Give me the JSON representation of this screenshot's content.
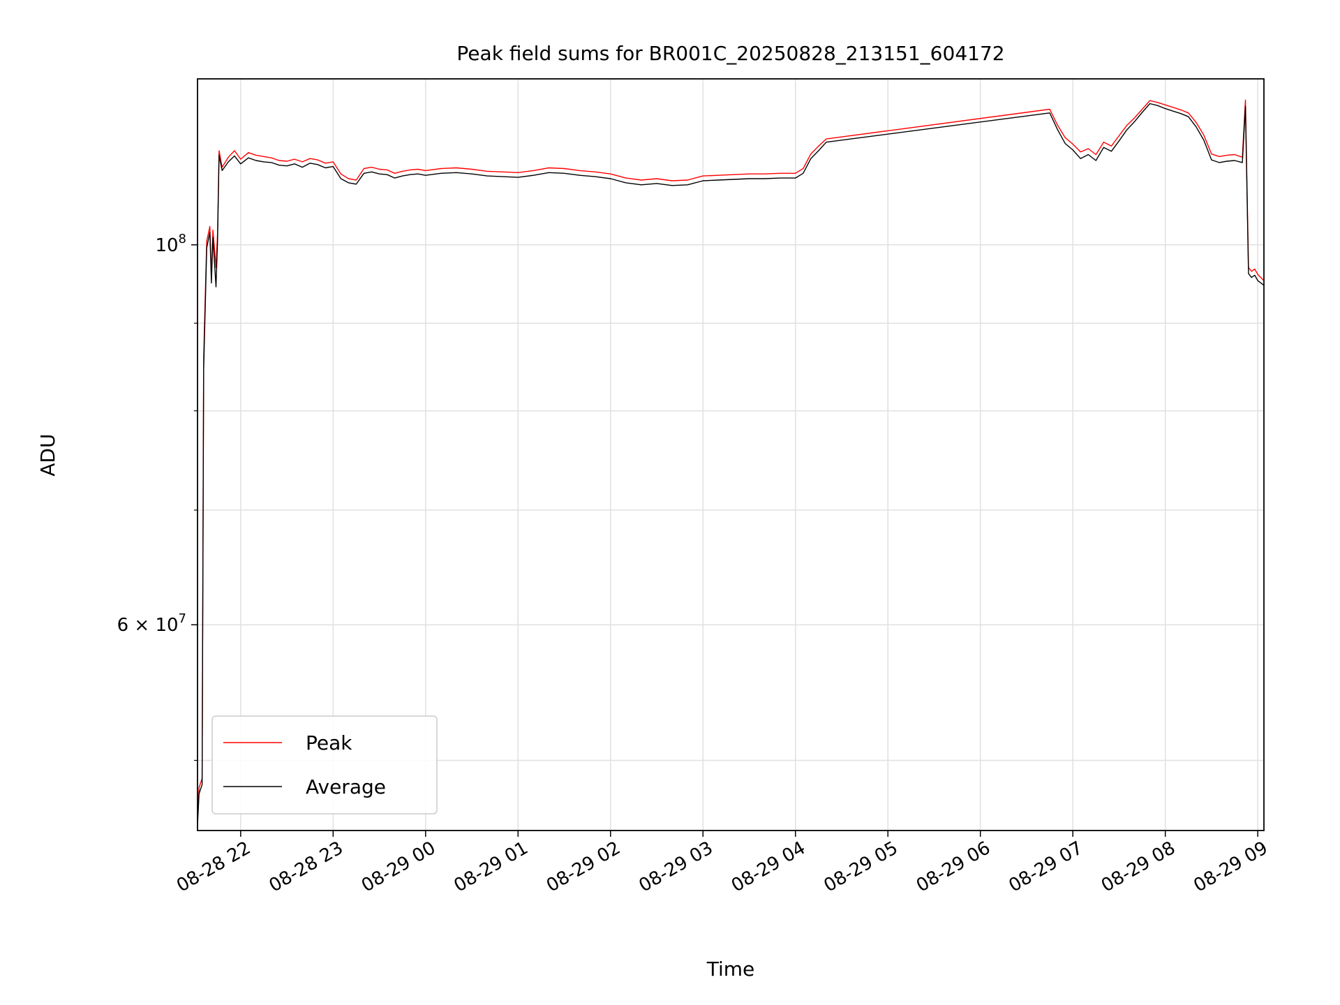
{
  "chart_data": {
    "type": "line",
    "title": "Peak field sums for BR001C_20250828_213151_604172",
    "xlabel": "Time",
    "ylabel": "ADU",
    "yscale": "log",
    "xlim": [
      "2025-08-28 21:32",
      "2025-08-29 09:04"
    ],
    "ylim": [
      45500000,
      125000000
    ],
    "grid": true,
    "legend_position": "lower-left",
    "x_ticks": [
      {
        "t": "2025-08-28 22:00",
        "label": "08-28 22"
      },
      {
        "t": "2025-08-28 23:00",
        "label": "08-28 23"
      },
      {
        "t": "2025-08-29 00:00",
        "label": "08-29 00"
      },
      {
        "t": "2025-08-29 01:00",
        "label": "08-29 01"
      },
      {
        "t": "2025-08-29 02:00",
        "label": "08-29 02"
      },
      {
        "t": "2025-08-29 03:00",
        "label": "08-29 03"
      },
      {
        "t": "2025-08-29 04:00",
        "label": "08-29 04"
      },
      {
        "t": "2025-08-29 05:00",
        "label": "08-29 05"
      },
      {
        "t": "2025-08-29 06:00",
        "label": "08-29 06"
      },
      {
        "t": "2025-08-29 07:00",
        "label": "08-29 07"
      },
      {
        "t": "2025-08-29 08:00",
        "label": "08-29 08"
      },
      {
        "t": "2025-08-29 09:00",
        "label": "08-29 09"
      }
    ],
    "y_ticks": [
      {
        "v": 100000000,
        "base": "10",
        "exp": "8"
      },
      {
        "v": 60000000,
        "base": "6 × 10",
        "exp": "7"
      }
    ],
    "y_minor_ticks": [
      50000000,
      70000000,
      80000000,
      90000000
    ],
    "series": [
      {
        "name": "Peak",
        "color": "#ff0000",
        "points": [
          [
            "2025-08-28 21:32",
            46000000
          ],
          [
            "2025-08-28 21:33",
            48200000
          ],
          [
            "2025-08-28 21:35",
            48800000
          ],
          [
            "2025-08-28 21:36",
            86000000
          ],
          [
            "2025-08-28 21:38",
            100500000
          ],
          [
            "2025-08-28 21:40",
            102500000
          ],
          [
            "2025-08-28 21:41",
            96000000
          ],
          [
            "2025-08-28 21:42",
            102000000
          ],
          [
            "2025-08-28 21:44",
            97000000
          ],
          [
            "2025-08-28 21:45",
            101500000
          ],
          [
            "2025-08-28 21:46",
            113500000
          ],
          [
            "2025-08-28 21:48",
            111000000
          ],
          [
            "2025-08-28 21:52",
            112500000
          ],
          [
            "2025-08-28 21:56",
            113500000
          ],
          [
            "2025-08-28 22:00",
            112200000
          ],
          [
            "2025-08-28 22:05",
            113200000
          ],
          [
            "2025-08-28 22:10",
            112800000
          ],
          [
            "2025-08-28 22:15",
            112600000
          ],
          [
            "2025-08-28 22:20",
            112400000
          ],
          [
            "2025-08-28 22:25",
            112000000
          ],
          [
            "2025-08-28 22:30",
            111900000
          ],
          [
            "2025-08-28 22:35",
            112200000
          ],
          [
            "2025-08-28 22:40",
            111800000
          ],
          [
            "2025-08-28 22:45",
            112300000
          ],
          [
            "2025-08-28 22:50",
            112100000
          ],
          [
            "2025-08-28 22:55",
            111600000
          ],
          [
            "2025-08-28 23:00",
            111800000
          ],
          [
            "2025-08-28 23:05",
            110000000
          ],
          [
            "2025-08-28 23:10",
            109300000
          ],
          [
            "2025-08-28 23:15",
            109100000
          ],
          [
            "2025-08-28 23:20",
            110800000
          ],
          [
            "2025-08-28 23:25",
            111000000
          ],
          [
            "2025-08-28 23:30",
            110700000
          ],
          [
            "2025-08-28 23:35",
            110600000
          ],
          [
            "2025-08-28 23:40",
            110100000
          ],
          [
            "2025-08-28 23:45",
            110400000
          ],
          [
            "2025-08-28 23:50",
            110600000
          ],
          [
            "2025-08-28 23:55",
            110700000
          ],
          [
            "2025-08-29 00:00",
            110500000
          ],
          [
            "2025-08-29 00:10",
            110800000
          ],
          [
            "2025-08-29 00:20",
            110900000
          ],
          [
            "2025-08-29 00:30",
            110700000
          ],
          [
            "2025-08-29 00:40",
            110400000
          ],
          [
            "2025-08-29 00:50",
            110300000
          ],
          [
            "2025-08-29 01:00",
            110200000
          ],
          [
            "2025-08-29 01:10",
            110500000
          ],
          [
            "2025-08-29 01:20",
            110900000
          ],
          [
            "2025-08-29 01:30",
            110800000
          ],
          [
            "2025-08-29 01:40",
            110500000
          ],
          [
            "2025-08-29 01:50",
            110300000
          ],
          [
            "2025-08-29 02:00",
            110000000
          ],
          [
            "2025-08-29 02:10",
            109400000
          ],
          [
            "2025-08-29 02:20",
            109100000
          ],
          [
            "2025-08-29 02:30",
            109300000
          ],
          [
            "2025-08-29 02:40",
            109000000
          ],
          [
            "2025-08-29 02:50",
            109100000
          ],
          [
            "2025-08-29 03:00",
            109700000
          ],
          [
            "2025-08-29 03:10",
            109800000
          ],
          [
            "2025-08-29 03:20",
            109900000
          ],
          [
            "2025-08-29 03:30",
            110000000
          ],
          [
            "2025-08-29 03:40",
            110000000
          ],
          [
            "2025-08-29 03:50",
            110100000
          ],
          [
            "2025-08-29 04:00",
            110100000
          ],
          [
            "2025-08-29 04:05",
            110800000
          ],
          [
            "2025-08-29 04:10",
            113000000
          ],
          [
            "2025-08-29 04:15",
            114200000
          ],
          [
            "2025-08-29 04:20",
            115300000
          ],
          [
            "2025-08-29 06:45",
            120000000
          ],
          [
            "2025-08-29 06:50",
            117500000
          ],
          [
            "2025-08-29 06:55",
            115500000
          ],
          [
            "2025-08-29 07:00",
            114500000
          ],
          [
            "2025-08-29 07:05",
            113300000
          ],
          [
            "2025-08-29 07:10",
            113800000
          ],
          [
            "2025-08-29 07:15",
            112900000
          ],
          [
            "2025-08-29 07:20",
            114800000
          ],
          [
            "2025-08-29 07:25",
            114200000
          ],
          [
            "2025-08-29 07:30",
            115800000
          ],
          [
            "2025-08-29 07:35",
            117400000
          ],
          [
            "2025-08-29 07:40",
            118600000
          ],
          [
            "2025-08-29 07:45",
            120000000
          ],
          [
            "2025-08-29 07:50",
            121400000
          ],
          [
            "2025-08-29 07:55",
            121100000
          ],
          [
            "2025-08-29 08:00",
            120700000
          ],
          [
            "2025-08-29 08:05",
            120300000
          ],
          [
            "2025-08-29 08:10",
            119900000
          ],
          [
            "2025-08-29 08:15",
            119400000
          ],
          [
            "2025-08-29 08:20",
            117900000
          ],
          [
            "2025-08-29 08:25",
            115900000
          ],
          [
            "2025-08-29 08:30",
            113000000
          ],
          [
            "2025-08-29 08:35",
            112600000
          ],
          [
            "2025-08-29 08:40",
            112800000
          ],
          [
            "2025-08-29 08:45",
            112900000
          ],
          [
            "2025-08-29 08:50",
            112500000
          ],
          [
            "2025-08-29 08:52",
            121500000
          ],
          [
            "2025-08-29 08:54",
            97000000
          ],
          [
            "2025-08-29 08:56",
            96500000
          ],
          [
            "2025-08-29 08:58",
            96800000
          ],
          [
            "2025-08-29 09:00",
            96100000
          ],
          [
            "2025-08-29 09:04",
            95300000
          ]
        ]
      },
      {
        "name": "Average",
        "color": "#000000",
        "points": [
          [
            "2025-08-28 21:32",
            45800000
          ],
          [
            "2025-08-28 21:33",
            47800000
          ],
          [
            "2025-08-28 21:35",
            48400000
          ],
          [
            "2025-08-28 21:36",
            84500000
          ],
          [
            "2025-08-28 21:38",
            99600000
          ],
          [
            "2025-08-28 21:40",
            101700000
          ],
          [
            "2025-08-28 21:41",
            95000000
          ],
          [
            "2025-08-28 21:42",
            101000000
          ],
          [
            "2025-08-28 21:44",
            94500000
          ],
          [
            "2025-08-28 21:45",
            100500000
          ],
          [
            "2025-08-28 21:46",
            112800000
          ],
          [
            "2025-08-28 21:48",
            110500000
          ],
          [
            "2025-08-28 21:52",
            111800000
          ],
          [
            "2025-08-28 21:56",
            112700000
          ],
          [
            "2025-08-28 22:00",
            111500000
          ],
          [
            "2025-08-28 22:05",
            112400000
          ],
          [
            "2025-08-28 22:10",
            112000000
          ],
          [
            "2025-08-28 22:15",
            111800000
          ],
          [
            "2025-08-28 22:20",
            111700000
          ],
          [
            "2025-08-28 22:25",
            111300000
          ],
          [
            "2025-08-28 22:30",
            111200000
          ],
          [
            "2025-08-28 22:35",
            111500000
          ],
          [
            "2025-08-28 22:40",
            111000000
          ],
          [
            "2025-08-28 22:45",
            111600000
          ],
          [
            "2025-08-28 22:50",
            111400000
          ],
          [
            "2025-08-28 22:55",
            110900000
          ],
          [
            "2025-08-28 23:00",
            111100000
          ],
          [
            "2025-08-28 23:05",
            109300000
          ],
          [
            "2025-08-28 23:10",
            108700000
          ],
          [
            "2025-08-28 23:15",
            108500000
          ],
          [
            "2025-08-28 23:20",
            110100000
          ],
          [
            "2025-08-28 23:25",
            110300000
          ],
          [
            "2025-08-28 23:30",
            110000000
          ],
          [
            "2025-08-28 23:35",
            109900000
          ],
          [
            "2025-08-28 23:40",
            109400000
          ],
          [
            "2025-08-28 23:45",
            109700000
          ],
          [
            "2025-08-28 23:50",
            109900000
          ],
          [
            "2025-08-28 23:55",
            110000000
          ],
          [
            "2025-08-29 00:00",
            109800000
          ],
          [
            "2025-08-29 00:10",
            110100000
          ],
          [
            "2025-08-29 00:20",
            110200000
          ],
          [
            "2025-08-29 00:30",
            110000000
          ],
          [
            "2025-08-29 00:40",
            109700000
          ],
          [
            "2025-08-29 00:50",
            109600000
          ],
          [
            "2025-08-29 01:00",
            109500000
          ],
          [
            "2025-08-29 01:10",
            109800000
          ],
          [
            "2025-08-29 01:20",
            110200000
          ],
          [
            "2025-08-29 01:30",
            110100000
          ],
          [
            "2025-08-29 01:40",
            109800000
          ],
          [
            "2025-08-29 01:50",
            109600000
          ],
          [
            "2025-08-29 02:00",
            109300000
          ],
          [
            "2025-08-29 02:10",
            108700000
          ],
          [
            "2025-08-29 02:20",
            108400000
          ],
          [
            "2025-08-29 02:30",
            108600000
          ],
          [
            "2025-08-29 02:40",
            108300000
          ],
          [
            "2025-08-29 02:50",
            108400000
          ],
          [
            "2025-08-29 03:00",
            109000000
          ],
          [
            "2025-08-29 03:10",
            109100000
          ],
          [
            "2025-08-29 03:20",
            109200000
          ],
          [
            "2025-08-29 03:30",
            109300000
          ],
          [
            "2025-08-29 03:40",
            109300000
          ],
          [
            "2025-08-29 03:50",
            109400000
          ],
          [
            "2025-08-29 04:00",
            109400000
          ],
          [
            "2025-08-29 04:05",
            110100000
          ],
          [
            "2025-08-29 04:10",
            112300000
          ],
          [
            "2025-08-29 04:15",
            113500000
          ],
          [
            "2025-08-29 04:20",
            114800000
          ],
          [
            "2025-08-29 06:45",
            119400000
          ],
          [
            "2025-08-29 06:50",
            116800000
          ],
          [
            "2025-08-29 06:55",
            114600000
          ],
          [
            "2025-08-29 07:00",
            113600000
          ],
          [
            "2025-08-29 07:05",
            112300000
          ],
          [
            "2025-08-29 07:10",
            112900000
          ],
          [
            "2025-08-29 07:15",
            112000000
          ],
          [
            "2025-08-29 07:20",
            114000000
          ],
          [
            "2025-08-29 07:25",
            113400000
          ],
          [
            "2025-08-29 07:30",
            115000000
          ],
          [
            "2025-08-29 07:35",
            116700000
          ],
          [
            "2025-08-29 07:40",
            118000000
          ],
          [
            "2025-08-29 07:45",
            119500000
          ],
          [
            "2025-08-29 07:50",
            120900000
          ],
          [
            "2025-08-29 07:55",
            120600000
          ],
          [
            "2025-08-29 08:00",
            120100000
          ],
          [
            "2025-08-29 08:05",
            119700000
          ],
          [
            "2025-08-29 08:10",
            119300000
          ],
          [
            "2025-08-29 08:15",
            118800000
          ],
          [
            "2025-08-29 08:20",
            117200000
          ],
          [
            "2025-08-29 08:25",
            115100000
          ],
          [
            "2025-08-29 08:30",
            112100000
          ],
          [
            "2025-08-29 08:35",
            111700000
          ],
          [
            "2025-08-29 08:40",
            111900000
          ],
          [
            "2025-08-29 08:45",
            112000000
          ],
          [
            "2025-08-29 08:50",
            111700000
          ],
          [
            "2025-08-29 08:52",
            120500000
          ],
          [
            "2025-08-29 08:54",
            96200000
          ],
          [
            "2025-08-29 08:56",
            95700000
          ],
          [
            "2025-08-29 08:58",
            96000000
          ],
          [
            "2025-08-29 09:00",
            95300000
          ],
          [
            "2025-08-29 09:04",
            94700000
          ]
        ]
      }
    ],
    "legend": [
      {
        "name": "Peak",
        "color": "#ff0000"
      },
      {
        "name": "Average",
        "color": "#000000"
      }
    ]
  }
}
